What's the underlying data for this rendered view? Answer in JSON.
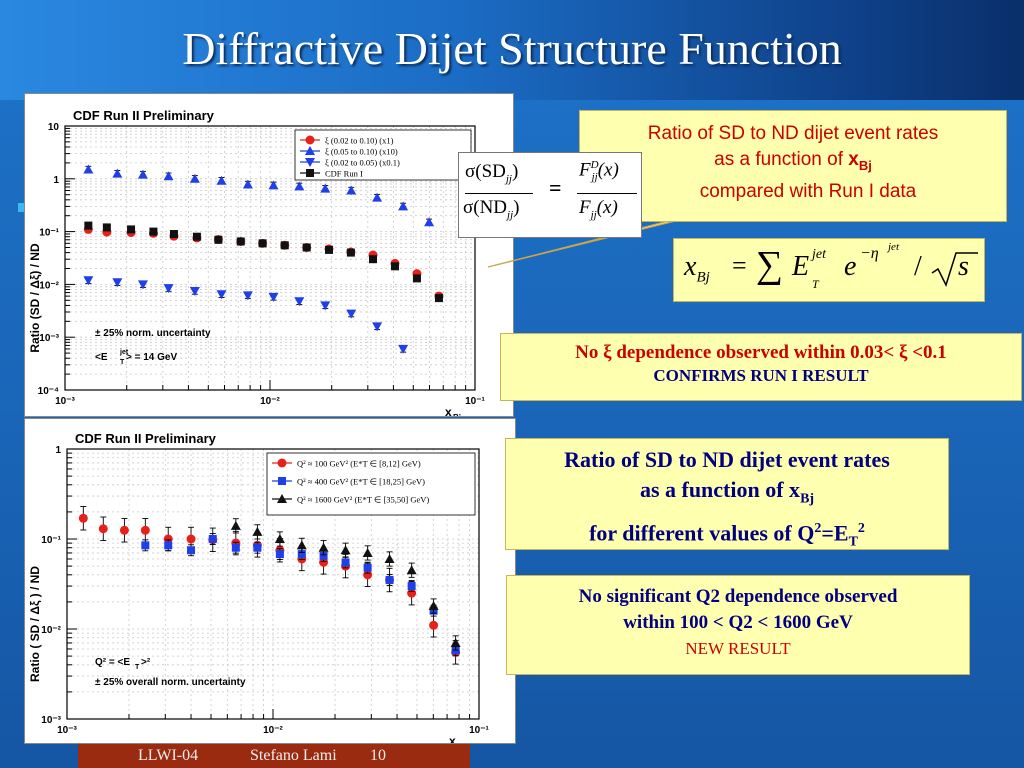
{
  "slide": {
    "title": "Diffractive Dijet Structure Function",
    "footer": {
      "event": "LLWI-04",
      "author": "Stefano Lami",
      "page": "10"
    }
  },
  "colors": {
    "red": "#e8201a",
    "blue": "#1f3fe8",
    "black": "#111111",
    "box_bg": "#ffffb0",
    "accent_red": "#cc0000"
  },
  "boxes": {
    "ratio_intro": {
      "line1": "Ratio of SD to ND dijet event rates",
      "line2": "as a function of ",
      "line2_bold": "x",
      "line2_sub": "Bj",
      "line3": "compared with Run I data"
    },
    "formula_ratio": {
      "lhs_num": "σ(SD",
      "lhs_num_sub": "jj",
      "lhs_den": "σ(ND",
      "lhs_den_sub": "jj",
      "eq": "=",
      "rhs_num": "F",
      "rhs_num_sup": "D",
      "rhs_num_sub": "jj",
      "rhs_den": "F",
      "rhs_den_sub": "jj",
      "arg": "(x)"
    },
    "formula_xbj": {
      "lhs": "x",
      "lhs_sub": "Bj",
      "eq": "=",
      "sum": "∑",
      "E": "E",
      "E_sup": "jet",
      "E_sub": "T",
      "e": "e",
      "e_sup": "−η",
      "e_sup2": "jet",
      "slash": "/",
      "s": "s"
    },
    "no_xi": {
      "line1": "No ξ dependence observed within 0.03< ξ <0.1",
      "line2": "CONFIRMS RUN I RESULT"
    },
    "ratio_q2": {
      "line1": "Ratio of SD to ND dijet event rates",
      "line2": "as a function of x",
      "line2_sub": "Bj",
      "line3_a": "for different values of Q",
      "line3_sup": "2",
      "line3_b": "=E",
      "line3_sub": "T",
      "line3_sup2": "2"
    },
    "no_q2": {
      "line1": "No significant Q2 dependence  observed",
      "line2": "within 100 < Q2 < 1600 GeV",
      "line3": "NEW RESULT"
    }
  },
  "chart_data": [
    {
      "type": "scatter",
      "title": "CDF Run II Preliminary",
      "xlabel": "x",
      "xlabel_sub": "Bj",
      "ylabel": "Ratio  (SD / Δξ) / ND",
      "xscale": "log",
      "yscale": "log",
      "xlim": [
        0.001,
        0.1
      ],
      "ylim": [
        0.0001,
        10
      ],
      "x_ticks": [
        "10⁻³",
        "10⁻²",
        "10⁻¹"
      ],
      "y_ticks": [
        "10",
        "1",
        "10⁻¹",
        "10⁻²",
        "10⁻³",
        "10⁻⁴"
      ],
      "grid": true,
      "legend_position": "top-right",
      "annotations": [
        "± 25% norm. uncertainty",
        "<E",
        "jet",
        "T",
        "> = 14 GeV"
      ],
      "series": [
        {
          "name": "ξ (0.02 to 0.10) (x1)",
          "marker": "circle",
          "color": "#e8201a",
          "x": [
            0.0013,
            0.0016,
            0.0021,
            0.0027,
            0.0034,
            0.0044,
            0.0056,
            0.0072,
            0.0092,
            0.0118,
            0.0151,
            0.0194,
            0.0248,
            0.0318,
            0.0407,
            0.0521,
            0.0667
          ],
          "y": [
            0.11,
            0.098,
            0.096,
            0.093,
            0.082,
            0.076,
            0.071,
            0.065,
            0.06,
            0.055,
            0.05,
            0.047,
            0.041,
            0.036,
            0.025,
            0.016,
            0.006
          ]
        },
        {
          "name": "ξ (0.05 to 0.10) (x10)",
          "marker": "triangle-up",
          "color": "#1f3fe8",
          "x": [
            0.0013,
            0.0018,
            0.0024,
            0.0032,
            0.0043,
            0.0058,
            0.0078,
            0.0104,
            0.0139,
            0.0186,
            0.0249,
            0.0333,
            0.0446,
            0.0597
          ],
          "y": [
            1.5,
            1.25,
            1.2,
            1.12,
            1.0,
            0.92,
            0.78,
            0.75,
            0.72,
            0.65,
            0.6,
            0.44,
            0.3,
            0.15
          ]
        },
        {
          "name": "ξ (0.02 to 0.05) (x0.1)",
          "marker": "triangle-down",
          "color": "#1f3fe8",
          "x": [
            0.0013,
            0.0018,
            0.0024,
            0.0032,
            0.0043,
            0.0058,
            0.0078,
            0.0104,
            0.0139,
            0.0186,
            0.0249,
            0.0333,
            0.0446
          ],
          "y": [
            0.012,
            0.011,
            0.01,
            0.0085,
            0.0075,
            0.0065,
            0.0062,
            0.0058,
            0.0048,
            0.004,
            0.0028,
            0.0016,
            0.0006
          ]
        },
        {
          "name": "CDF Run I",
          "marker": "square",
          "color": "#111111",
          "x": [
            0.0013,
            0.0016,
            0.0021,
            0.0027,
            0.0034,
            0.0044,
            0.0056,
            0.0072,
            0.0092,
            0.0118,
            0.0151,
            0.0194,
            0.0248,
            0.0318,
            0.0407,
            0.0521,
            0.0667
          ],
          "y": [
            0.13,
            0.12,
            0.11,
            0.1,
            0.09,
            0.08,
            0.07,
            0.065,
            0.06,
            0.055,
            0.05,
            0.045,
            0.04,
            0.03,
            0.022,
            0.013,
            0.0055
          ]
        }
      ]
    },
    {
      "type": "scatter",
      "title": "CDF Run II Preliminary",
      "xlabel": "x",
      "xlabel_sub": "Bj",
      "ylabel": "Ratio  ( SD / Δξ ) / ND",
      "xscale": "log",
      "yscale": "log",
      "xlim": [
        0.001,
        0.1
      ],
      "ylim": [
        0.001,
        1
      ],
      "x_ticks": [
        "10⁻³",
        "10⁻²",
        "10⁻¹"
      ],
      "y_ticks": [
        "1",
        "10⁻¹",
        "10⁻²",
        "10⁻³"
      ],
      "grid": true,
      "legend_position": "top-right",
      "annotations": [
        "Q² = <E",
        "T",
        ">²",
        "± 25% overall norm. uncertainty"
      ],
      "series": [
        {
          "name": "Q² ≈ 100 GeV² (E*T ∈ [8,12] GeV)",
          "marker": "circle",
          "color": "#e8201a",
          "x": [
            0.0012,
            0.0015,
            0.0019,
            0.0024,
            0.0031,
            0.004,
            0.0051,
            0.0066,
            0.0084,
            0.0108,
            0.0138,
            0.0176,
            0.0225,
            0.0288,
            0.0368,
            0.0471,
            0.0602,
            0.077
          ],
          "y": [
            0.17,
            0.13,
            0.125,
            0.125,
            0.1,
            0.1,
            0.098,
            0.09,
            0.085,
            0.075,
            0.06,
            0.055,
            0.05,
            0.04,
            0.035,
            0.025,
            0.011,
            0.0055
          ]
        },
        {
          "name": "Q² ≈ 400 GeV² (E*T ∈ [18,25] GeV)",
          "marker": "square",
          "color": "#1f3fe8",
          "x": [
            0.0024,
            0.0031,
            0.004,
            0.0051,
            0.0066,
            0.0084,
            0.0108,
            0.0138,
            0.0176,
            0.0225,
            0.0288,
            0.0368,
            0.0471,
            0.0602,
            0.077
          ],
          "y": [
            0.085,
            0.085,
            0.075,
            0.1,
            0.08,
            0.08,
            0.068,
            0.068,
            0.065,
            0.055,
            0.048,
            0.035,
            0.03,
            0.016,
            0.0058
          ]
        },
        {
          "name": "Q² ≈ 1600 GeV² (E*T ∈ [35,50] GeV)",
          "marker": "triangle-up",
          "color": "#111111",
          "x": [
            0.0066,
            0.0084,
            0.0108,
            0.0138,
            0.0176,
            0.0225,
            0.0288,
            0.0368,
            0.0471,
            0.0602,
            0.077
          ],
          "y": [
            0.14,
            0.12,
            0.1,
            0.085,
            0.08,
            0.075,
            0.07,
            0.06,
            0.045,
            0.018,
            0.007
          ]
        }
      ]
    }
  ]
}
